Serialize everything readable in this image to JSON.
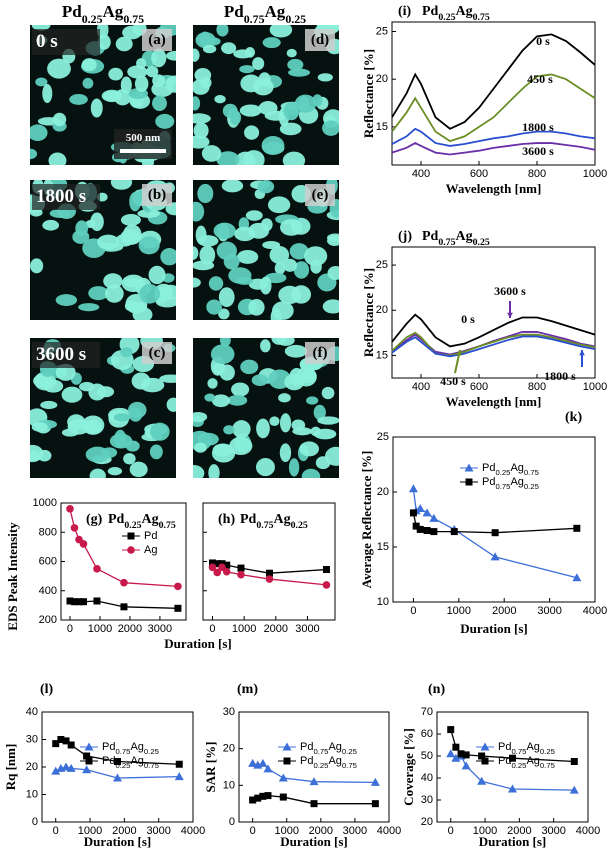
{
  "figure": {
    "column_headers": [
      "Pd0.25Ag0.75",
      "Pd0.75Ag0.25"
    ],
    "images": [
      {
        "panel": "(a)",
        "time": "0 s"
      },
      {
        "panel": "(b)",
        "time": "1800 s"
      },
      {
        "panel": "(c)",
        "time": "3600 s"
      },
      {
        "panel": "(d)"
      },
      {
        "panel": "(e)"
      },
      {
        "panel": "(f)"
      }
    ],
    "scale_bar": "500 nm"
  },
  "chart_data": [
    {
      "type": "line",
      "panel": "(i)",
      "title": "Pd0.25Ag0.75",
      "x_label": "Wavelength [nm]",
      "y_label": "Reflectance [%]",
      "x": [
        300,
        350,
        380,
        400,
        450,
        500,
        550,
        600,
        650,
        700,
        750,
        800,
        850,
        900,
        950,
        1000
      ],
      "series": [
        {
          "name": "0 s",
          "color": "#000000",
          "values": [
            16,
            18.5,
            20.5,
            19.5,
            16,
            14.8,
            15.5,
            17,
            19,
            21,
            23,
            24.5,
            24.7,
            24,
            22.8,
            21.5
          ]
        },
        {
          "name": "450 s",
          "color": "#6b8e23",
          "values": [
            14.5,
            16.5,
            18,
            17,
            14.5,
            13.5,
            14,
            15,
            16,
            17.5,
            19,
            20.3,
            20.5,
            20,
            19,
            18
          ]
        },
        {
          "name": "1800 s",
          "color": "#2a4fd0",
          "values": [
            13.2,
            14,
            14.8,
            14.5,
            13.3,
            13,
            13.2,
            13.5,
            13.8,
            14,
            14.3,
            14.5,
            14.5,
            14.3,
            14,
            13.8
          ]
        },
        {
          "name": "3600 s",
          "color": "#6a2ea8",
          "values": [
            12.3,
            12.8,
            13.3,
            13,
            12.3,
            12.1,
            12.3,
            12.5,
            12.8,
            13,
            13.2,
            13.3,
            13.3,
            13.1,
            12.9,
            12.6
          ]
        }
      ],
      "xlim": [
        300,
        1000
      ],
      "ylim": [
        11,
        26
      ],
      "xticks": [
        400,
        600,
        800,
        1000
      ],
      "yticks": [
        15,
        20,
        25
      ]
    },
    {
      "type": "line",
      "panel": "(j)",
      "title": "Pd0.75Ag0.25",
      "x_label": "Wavelength [nm]",
      "y_label": "Reflectance [%]",
      "x": [
        300,
        350,
        380,
        400,
        450,
        500,
        550,
        600,
        650,
        700,
        750,
        800,
        850,
        900,
        950,
        1000
      ],
      "series": [
        {
          "name": "0 s",
          "color": "#000000",
          "values": [
            16.5,
            18.5,
            19.5,
            19,
            17,
            16,
            16.3,
            17,
            17.8,
            18.6,
            19.2,
            19.2,
            18.8,
            18.3,
            17.8,
            17.3
          ]
        },
        {
          "name": "3600 s",
          "color": "#6a2ea8",
          "values": [
            15.4,
            16.7,
            17.3,
            16.8,
            15.4,
            15.1,
            15.5,
            16,
            16.6,
            17.1,
            17.6,
            17.6,
            17.2,
            16.8,
            16.3,
            16
          ]
        },
        {
          "name": "450 s",
          "color": "#6b8e23",
          "values": [
            15.5,
            17,
            17.5,
            17,
            15.2,
            15,
            15.4,
            16,
            16.5,
            17,
            17.3,
            17.3,
            17,
            16.6,
            16.2,
            15.9
          ]
        },
        {
          "name": "1800 s",
          "color": "#2a4fd0",
          "values": [
            15.3,
            16.5,
            17,
            16.5,
            15.2,
            14.9,
            15.2,
            15.7,
            16.2,
            16.7,
            17.1,
            17.1,
            16.8,
            16.4,
            16,
            15.7
          ]
        }
      ],
      "xlim": [
        300,
        1000
      ],
      "ylim": [
        12.5,
        27
      ],
      "xticks": [
        400,
        600,
        800,
        1000
      ],
      "yticks": [
        15,
        20,
        25
      ]
    },
    {
      "type": "line",
      "panel": "(k)",
      "x_label": "Duration [s]",
      "y_label": "Average Reflectance [%]",
      "legend": "top-right",
      "x": [
        0,
        60,
        150,
        300,
        450,
        900,
        1800,
        3600
      ],
      "series": [
        {
          "name": "Pd0.25Ag0.75",
          "color": "#3d6fd9",
          "marker": "triangle",
          "values": [
            20.3,
            18.3,
            18.5,
            18.1,
            17.6,
            16.6,
            14.1,
            12.2
          ]
        },
        {
          "name": "Pd0.75Ag0.25",
          "color": "#000000",
          "marker": "square",
          "values": [
            18.1,
            16.9,
            16.6,
            16.5,
            16.4,
            16.4,
            16.3,
            16.7
          ]
        }
      ],
      "xlim": [
        -450,
        4000
      ],
      "ylim": [
        10,
        25
      ],
      "xticks": [
        0,
        1000,
        2000,
        3000,
        4000
      ],
      "yticks": [
        10,
        15,
        20,
        25
      ]
    },
    {
      "type": "line",
      "panel": "(g)",
      "title": "Pd0.25Ag0.75",
      "x_label": "Duration [s]",
      "y_label": "EDS Peak Intensity",
      "legend": "top-right",
      "x": [
        0,
        150,
        300,
        450,
        900,
        1800,
        3600
      ],
      "series": [
        {
          "name": "Pd",
          "color": "#000000",
          "marker": "square",
          "values": [
            330,
            325,
            325,
            325,
            330,
            290,
            280
          ]
        },
        {
          "name": "Ag",
          "color": "#c8194b",
          "marker": "circle",
          "values": [
            960,
            830,
            750,
            720,
            550,
            455,
            430
          ]
        }
      ],
      "xlim": [
        -300,
        3870
      ],
      "ylim": [
        200,
        1000
      ],
      "xticks": [
        0,
        1000,
        2000,
        3000
      ],
      "yticks": [
        200,
        400,
        600,
        800,
        1000
      ]
    },
    {
      "type": "line",
      "panel": "(h)",
      "title": "Pd0.75Ag0.25",
      "x": [
        0,
        150,
        300,
        450,
        900,
        1800,
        3600
      ],
      "series": [
        {
          "color": "#000000",
          "marker": "square",
          "values": [
            590,
            585,
            585,
            575,
            555,
            520,
            545
          ]
        },
        {
          "color": "#c8194b",
          "marker": "circle",
          "values": [
            560,
            525,
            560,
            530,
            510,
            480,
            440
          ]
        }
      ],
      "xlim": [
        -300,
        3870
      ],
      "ylim": [
        200,
        1000
      ],
      "xticks": [
        0,
        1000,
        2000,
        3000
      ],
      "yticks": [
        200,
        400,
        600,
        800,
        1000
      ]
    },
    {
      "type": "line",
      "panel": "(l)",
      "x_label": "Duration [s]",
      "y_label": "Rq [nm]",
      "legend": "top-right",
      "x": [
        0,
        150,
        300,
        450,
        900,
        1800,
        3600
      ],
      "series": [
        {
          "name": "Pd0.75Ag0.25",
          "color": "#3d6fd9",
          "marker": "triangle",
          "values": [
            18.5,
            19.5,
            20,
            19.5,
            19,
            16,
            16.5
          ]
        },
        {
          "name": "Pd0.25Ag0.75",
          "color": "#000000",
          "marker": "square",
          "values": [
            28.5,
            30,
            29.5,
            28,
            24,
            22,
            21
          ]
        }
      ],
      "xlim": [
        -400,
        4000
      ],
      "ylim": [
        0,
        40
      ],
      "xticks": [
        0,
        1000,
        2000,
        3000,
        4000
      ],
      "yticks": [
        0,
        10,
        20,
        30,
        40
      ]
    },
    {
      "type": "line",
      "panel": "(m)",
      "x_label": "Duration [s]",
      "y_label": "SAR [%]",
      "legend": "top-right",
      "x": [
        0,
        150,
        300,
        450,
        900,
        1800,
        3600
      ],
      "series": [
        {
          "name": "Pd0.75Ag0.25",
          "color": "#3d6fd9",
          "marker": "triangle",
          "values": [
            16,
            15.5,
            16,
            14.5,
            12,
            11,
            10.8
          ]
        },
        {
          "name": "Pd0.25Ag0.75",
          "color": "#000000",
          "marker": "square",
          "values": [
            6,
            6.5,
            7,
            7.2,
            6.8,
            5,
            5
          ]
        }
      ],
      "xlim": [
        -400,
        4000
      ],
      "ylim": [
        0,
        30
      ],
      "xticks": [
        0,
        1000,
        2000,
        3000,
        4000
      ],
      "yticks": [
        0,
        10,
        20,
        30
      ]
    },
    {
      "type": "line",
      "panel": "(n)",
      "x_label": "Duration [s]",
      "y_label": "Coverage [%]",
      "legend": "top-right",
      "x": [
        0,
        150,
        300,
        450,
        900,
        1800,
        3600
      ],
      "series": [
        {
          "name": "Pd0.75Ag0.25",
          "color": "#3d6fd9",
          "marker": "triangle",
          "values": [
            51,
            49,
            50,
            45.5,
            38.5,
            35,
            34.5
          ]
        },
        {
          "name": "Pd0.25Ag0.75",
          "color": "#000000",
          "marker": "square",
          "values": [
            62,
            54,
            51,
            50.5,
            50,
            49,
            47.5
          ]
        }
      ],
      "xlim": [
        -400,
        4000
      ],
      "ylim": [
        20,
        70
      ],
      "xticks": [
        0,
        1000,
        2000,
        3000,
        4000
      ],
      "yticks": [
        20,
        30,
        40,
        50,
        60,
        70
      ]
    }
  ]
}
